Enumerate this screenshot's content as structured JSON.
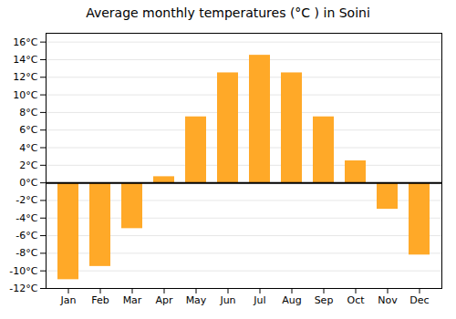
{
  "chart_data": {
    "type": "bar",
    "title": "Average monthly temperatures (°C ) in Soini",
    "categories": [
      "Jan",
      "Feb",
      "Mar",
      "Apr",
      "May",
      "Jun",
      "Jul",
      "Aug",
      "Sep",
      "Oct",
      "Nov",
      "Dec"
    ],
    "values": [
      -11,
      -9.5,
      -5.2,
      0.7,
      7.5,
      12.5,
      14.5,
      12.5,
      7.5,
      2.5,
      -3.0,
      -8.2
    ],
    "color": "#FFA928",
    "ylim": [
      -12,
      17
    ],
    "yticks": [
      {
        "value": -12,
        "label": "-12°C"
      },
      {
        "value": -10,
        "label": "-10°C"
      },
      {
        "value": -8,
        "label": "-8°C"
      },
      {
        "value": -6,
        "label": "-6°C"
      },
      {
        "value": -4,
        "label": "-4°C"
      },
      {
        "value": -2,
        "label": "-2°C"
      },
      {
        "value": 0,
        "label": "0°C"
      },
      {
        "value": 2,
        "label": "2°C"
      },
      {
        "value": 4,
        "label": "4°C"
      },
      {
        "value": 6,
        "label": "6°C"
      },
      {
        "value": 8,
        "label": "8°C"
      },
      {
        "value": 10,
        "label": "10°C"
      },
      {
        "value": 12,
        "label": "12°C"
      },
      {
        "value": 14,
        "label": "14°C"
      },
      {
        "value": 16,
        "label": "16°C"
      }
    ],
    "grid": true
  }
}
